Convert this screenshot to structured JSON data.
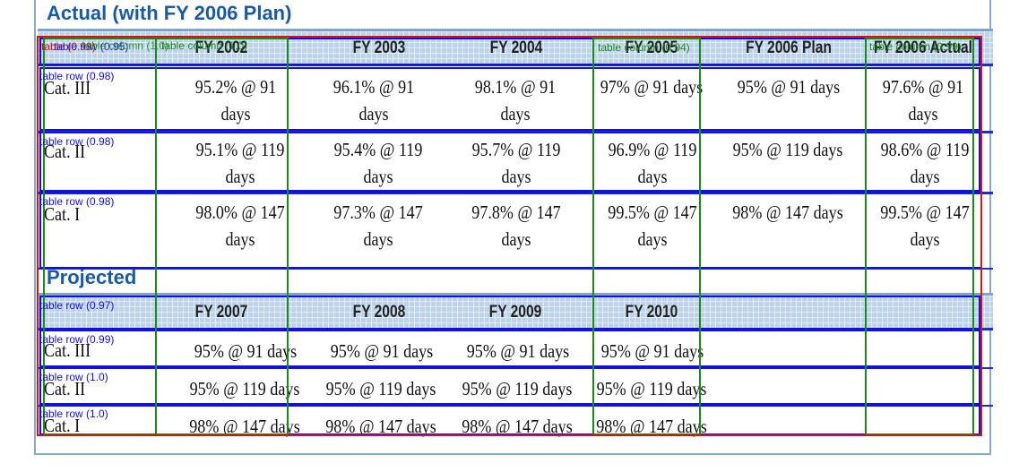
{
  "actual_section": {
    "title": "Actual (with FY 2006 Plan)",
    "headers": [
      "FY 2002",
      "FY 2003",
      "FY 2004",
      "FY 2005",
      "FY 2006 Plan",
      "FY 2006 Actual"
    ],
    "rows": [
      {
        "label": "Cat. III",
        "cells": [
          "95.2% @ 91 days",
          "96.1% @ 91 days",
          "98.1% @ 91 days",
          "97% @ 91 days",
          "95% @ 91 days",
          "97.6% @ 91 days"
        ]
      },
      {
        "label": "Cat. II",
        "cells": [
          "95.1% @ 119 days",
          "95.4% @ 119 days",
          "95.7% @ 119 days",
          "96.9% @ 119 days",
          "95% @ 119 days",
          "98.6% @ 119 days"
        ]
      },
      {
        "label": "Cat. I",
        "cells": [
          "98.0% @ 147 days",
          "97.3% @ 147 days",
          "97.8% @ 147 days",
          "99.5% @ 147 days",
          "98% @ 147 days",
          "99.5% @ 147 days"
        ]
      }
    ]
  },
  "projected_section": {
    "title": "Projected",
    "headers": [
      "FY 2007",
      "FY 2008",
      "FY 2009",
      "FY 2010"
    ],
    "rows": [
      {
        "label": "Cat. III",
        "cells": [
          "95% @ 91 days",
          "95% @ 91 days",
          "95% @ 91 days",
          "95% @ 91 days"
        ]
      },
      {
        "label": "Cat. II",
        "cells": [
          "95% @ 119 days",
          "95% @ 119 days",
          "95% @ 119 days",
          "95% @ 119 days"
        ]
      },
      {
        "label": "Cat. I",
        "cells": [
          "98% @ 147 days",
          "98% @ 147 days",
          "98% @ 147 days",
          "98% @ 147 days"
        ]
      }
    ]
  },
  "annotations": {
    "table": "table (0.99)",
    "column_first": "table column (1.0)",
    "column_second": "table column (1.0)",
    "column_fy2005": "table column (0.94)",
    "column_last": "table column (0.99)",
    "row_header": "table row (0.95)",
    "row_cat3": "table row (0.98)",
    "row_cat2": "table row (0.98)",
    "row_cat1": "table row (0.98)",
    "row_proj_header": "table row (0.97)",
    "row_proj_cat3": "table row (0.99)",
    "row_proj_cat2": "table row (1.0)",
    "row_proj_cat1": "table row (1.0)"
  },
  "colors": {
    "title_blue": "#1a5aa0",
    "row_box": "#1010e0",
    "column_box": "#1a8a1a",
    "table_box": "#e01010",
    "band": "#bcd3ea"
  }
}
